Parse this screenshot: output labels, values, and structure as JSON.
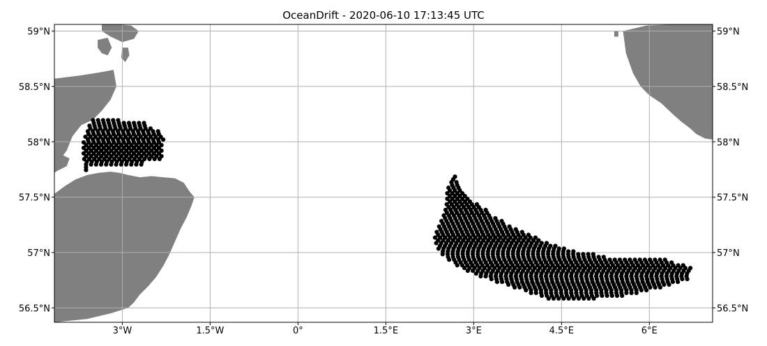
{
  "chart_data": {
    "type": "map",
    "title": "OceanDrift - 2020-06-10 17:13:45 UTC",
    "x_ticks": [
      {
        "value": -3.0,
        "label": "3°W"
      },
      {
        "value": -1.5,
        "label": "1.5°W"
      },
      {
        "value": 0.0,
        "label": "0°"
      },
      {
        "value": 1.5,
        "label": "1.5°E"
      },
      {
        "value": 3.0,
        "label": "3°E"
      },
      {
        "value": 4.5,
        "label": "4.5°E"
      },
      {
        "value": 6.0,
        "label": "6°E"
      }
    ],
    "y_ticks": [
      {
        "value": 59.0,
        "label": "59°N"
      },
      {
        "value": 58.5,
        "label": "58.5°N"
      },
      {
        "value": 58.0,
        "label": "58°N"
      },
      {
        "value": 57.5,
        "label": "57.5°N"
      },
      {
        "value": 57.0,
        "label": "57°N"
      },
      {
        "value": 56.5,
        "label": "56.5°N"
      }
    ],
    "lon_range": [
      -4.16,
      7.08
    ],
    "lat_range": [
      56.37,
      59.06
    ],
    "grid": true,
    "land_color": "#808080",
    "particle_color": "#000000",
    "land": [
      {
        "name": "scotland-mainland",
        "lon": [
          -4.16,
          -3.98,
          -3.8,
          -3.6,
          -3.4,
          -3.2,
          -3.05,
          -2.9,
          -2.7,
          -2.5,
          -2.3,
          -2.1,
          -1.95,
          -1.85,
          -1.77,
          -1.82,
          -1.9,
          -2.0,
          -2.1,
          -2.2,
          -2.3,
          -2.42,
          -2.55,
          -2.7,
          -2.8,
          -2.9,
          -3.2,
          -3.6,
          -4.16
        ],
        "lat": [
          57.53,
          57.6,
          57.66,
          57.7,
          57.72,
          57.73,
          57.72,
          57.7,
          57.68,
          57.69,
          57.68,
          57.67,
          57.63,
          57.55,
          57.5,
          57.42,
          57.32,
          57.22,
          57.1,
          56.98,
          56.88,
          56.78,
          56.7,
          56.62,
          56.55,
          56.5,
          56.45,
          56.4,
          56.37
        ]
      },
      {
        "name": "caithness",
        "lon": [
          -4.16,
          -3.7,
          -3.35,
          -3.15,
          -3.1,
          -3.2,
          -3.35,
          -3.5,
          -3.7,
          -3.85,
          -3.95,
          -4.05,
          -4.16
        ],
        "lat": [
          58.57,
          58.6,
          58.63,
          58.65,
          58.5,
          58.38,
          58.28,
          58.2,
          58.15,
          58.05,
          57.92,
          57.85,
          57.8
        ]
      },
      {
        "name": "dornoch-coast",
        "lon": [
          -4.16,
          -4.02,
          -3.9,
          -3.95,
          -4.1,
          -4.16
        ],
        "lat": [
          57.9,
          57.88,
          57.85,
          57.78,
          57.74,
          57.72
        ]
      },
      {
        "name": "orkney-hoy",
        "lon": [
          -3.42,
          -3.25,
          -3.18,
          -3.25,
          -3.35,
          -3.42
        ],
        "lat": [
          58.92,
          58.94,
          58.85,
          58.78,
          58.8,
          58.85
        ]
      },
      {
        "name": "orkney-mainland",
        "lon": [
          -3.35,
          -3.1,
          -2.85,
          -2.72,
          -2.8,
          -3.0,
          -3.2,
          -3.35
        ],
        "lat": [
          59.06,
          59.06,
          59.05,
          59.0,
          58.93,
          58.9,
          58.95,
          59.0
        ]
      },
      {
        "name": "orkney-south-ronaldsay",
        "lon": [
          -3.0,
          -2.9,
          -2.88,
          -2.95,
          -3.02,
          -3.0
        ],
        "lat": [
          58.85,
          58.85,
          58.78,
          58.72,
          58.76,
          58.85
        ]
      },
      {
        "name": "norway-west",
        "lon": [
          7.08,
          6.45,
          5.95,
          5.55,
          5.6,
          5.72,
          5.85,
          6.0,
          6.2,
          6.4,
          6.55,
          6.7,
          6.8,
          6.95,
          7.08
        ],
        "lat": [
          59.06,
          59.06,
          59.05,
          59.0,
          58.8,
          58.62,
          58.5,
          58.42,
          58.35,
          58.25,
          58.18,
          58.12,
          58.07,
          58.03,
          58.02
        ]
      },
      {
        "name": "norway-small-island",
        "lon": [
          5.4,
          5.47,
          5.47,
          5.4
        ],
        "lat": [
          59.0,
          59.0,
          58.95,
          58.95
        ]
      }
    ],
    "particles": [
      {
        "name": "particle-cloud-west",
        "lat_start": 57.745,
        "lat_step": 0.025,
        "rows": [
          [
            -3.62,
            -3.62
          ],
          [
            -3.62,
            -3.62
          ],
          [
            -3.62,
            -2.62
          ],
          [
            -3.65,
            -2.62
          ],
          [
            -3.65,
            -2.3
          ],
          [
            -3.66,
            -2.3
          ],
          [
            -3.66,
            -2.3
          ],
          [
            -3.66,
            -2.3
          ],
          [
            -3.66,
            -2.3
          ],
          [
            -3.66,
            -2.3
          ],
          [
            -3.66,
            -2.3
          ],
          [
            -3.63,
            -2.3
          ],
          [
            -3.63,
            -2.3
          ],
          [
            -3.62,
            -2.3
          ],
          [
            -3.59,
            -2.37
          ],
          [
            -3.59,
            -2.5
          ],
          [
            -3.56,
            -2.55
          ],
          [
            -3.53,
            -2.6
          ],
          [
            -3.5,
            -3.02
          ]
        ]
      },
      {
        "name": "particle-cloud-east",
        "lat_start": 56.585,
        "lat_step": 0.025,
        "rows": [
          [
            4.28,
            5.1
          ],
          [
            4.12,
            5.6
          ],
          [
            3.98,
            5.85
          ],
          [
            3.85,
            6.02
          ],
          [
            3.7,
            6.2
          ],
          [
            3.55,
            6.35
          ],
          [
            3.4,
            6.55
          ],
          [
            3.26,
            6.7
          ],
          [
            3.12,
            6.7
          ],
          [
            3.0,
            6.7
          ],
          [
            2.9,
            6.7
          ],
          [
            2.8,
            6.7
          ],
          [
            2.72,
            6.62
          ],
          [
            2.65,
            6.45
          ],
          [
            2.58,
            6.33
          ],
          [
            2.52,
            5.3
          ],
          [
            2.47,
            5.05
          ],
          [
            2.43,
            4.78
          ],
          [
            2.4,
            4.6
          ],
          [
            2.38,
            4.45
          ],
          [
            2.36,
            4.3
          ],
          [
            2.35,
            4.18
          ],
          [
            2.34,
            4.06
          ],
          [
            2.35,
            3.95
          ],
          [
            2.37,
            3.86
          ],
          [
            2.39,
            3.76
          ],
          [
            2.41,
            3.66
          ],
          [
            2.43,
            3.58
          ],
          [
            2.45,
            3.5
          ],
          [
            2.47,
            3.42
          ],
          [
            2.49,
            3.34
          ],
          [
            2.5,
            3.27
          ],
          [
            2.52,
            3.2
          ],
          [
            2.53,
            3.13
          ],
          [
            2.54,
            3.07
          ],
          [
            2.55,
            3.01
          ],
          [
            2.55,
            2.96
          ],
          [
            2.55,
            2.91
          ],
          [
            2.55,
            2.86
          ],
          [
            2.55,
            2.81
          ],
          [
            2.57,
            2.77
          ],
          [
            2.59,
            2.73
          ],
          [
            2.62,
            2.7
          ],
          [
            2.65,
            2.67
          ],
          [
            2.68,
            2.68
          ]
        ]
      }
    ]
  }
}
